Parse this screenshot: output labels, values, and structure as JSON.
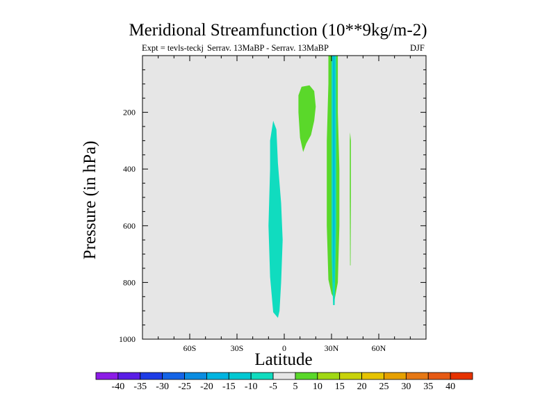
{
  "chart_data": {
    "type": "contour",
    "title": "Meridional Streamfunction (10**9kg/m-2)",
    "subtitle_left": "Expt = tevls-teckj",
    "subtitle_center": "Serrav.   13MaBP - Serrav.   13MaBP",
    "subtitle_right": "DJF",
    "xlabel": "Latitude",
    "ylabel": "Pressure (in hPa)",
    "xlim": [
      -90,
      90
    ],
    "ylim": [
      1000,
      0
    ],
    "x_ticks": [
      {
        "value": -60,
        "label": "60S"
      },
      {
        "value": -30,
        "label": "30S"
      },
      {
        "value": 0,
        "label": "0"
      },
      {
        "value": 30,
        "label": "30N"
      },
      {
        "value": 60,
        "label": "60N"
      }
    ],
    "y_ticks": [
      {
        "value": 200,
        "label": "200"
      },
      {
        "value": 400,
        "label": "400"
      },
      {
        "value": 600,
        "label": "600"
      },
      {
        "value": 800,
        "label": "800"
      },
      {
        "value": 1000,
        "label": "1000"
      }
    ],
    "background_color": "#e6e6e6",
    "regions": [
      {
        "name": "neg-5-cell-near-eq",
        "level": -5,
        "color": "#10dcbf",
        "points": [
          [
            -7,
            230
          ],
          [
            -5,
            260
          ],
          [
            -4,
            380
          ],
          [
            -2,
            520
          ],
          [
            -1,
            650
          ],
          [
            -2,
            800
          ],
          [
            -3,
            900
          ],
          [
            -4,
            925
          ],
          [
            -7,
            905
          ],
          [
            -9,
            780
          ],
          [
            -10,
            600
          ],
          [
            -9,
            400
          ],
          [
            -9,
            300
          ]
        ]
      },
      {
        "name": "pos-5-cell-upper",
        "level": 5,
        "color": "#5ad82a",
        "points": [
          [
            11,
            110
          ],
          [
            16,
            105
          ],
          [
            19,
            125
          ],
          [
            20,
            180
          ],
          [
            19,
            230
          ],
          [
            17,
            280
          ],
          [
            14,
            310
          ],
          [
            12,
            340
          ],
          [
            10,
            290
          ],
          [
            9,
            200
          ],
          [
            9,
            140
          ]
        ]
      },
      {
        "name": "pos-5-band-30n",
        "level": 5,
        "color": "#5ad82a",
        "points": [
          [
            28,
            0
          ],
          [
            34,
            0
          ],
          [
            34,
            200
          ],
          [
            35,
            400
          ],
          [
            35,
            600
          ],
          [
            34,
            800
          ],
          [
            32,
            860
          ],
          [
            30,
            840
          ],
          [
            28,
            790
          ],
          [
            27,
            600
          ],
          [
            27,
            300
          ],
          [
            28,
            100
          ]
        ]
      },
      {
        "name": "neg-5-band-31n",
        "level": -5,
        "color": "#10dcbf",
        "points": [
          [
            30,
            0
          ],
          [
            33,
            0
          ],
          [
            33,
            300
          ],
          [
            33,
            600
          ],
          [
            32,
            880
          ],
          [
            31,
            880
          ],
          [
            30,
            700
          ],
          [
            30,
            300
          ]
        ]
      },
      {
        "name": "neg-15-band-31n",
        "level": -15,
        "color": "#00b4e0",
        "points": [
          [
            31,
            0
          ],
          [
            32,
            0
          ],
          [
            32,
            300
          ],
          [
            32,
            600
          ],
          [
            31.6,
            800
          ],
          [
            31.3,
            800
          ],
          [
            31,
            600
          ],
          [
            31,
            300
          ]
        ]
      },
      {
        "name": "pos-5-band-42n",
        "level": 5,
        "color": "#5ad82a",
        "points": [
          [
            41.8,
            270
          ],
          [
            42.3,
            300
          ],
          [
            42.3,
            500
          ],
          [
            42.1,
            740
          ],
          [
            41.8,
            740
          ],
          [
            41.6,
            500
          ],
          [
            41.6,
            300
          ]
        ]
      }
    ],
    "colorbar": {
      "labels": [
        "-40",
        "-35",
        "-30",
        "-25",
        "-20",
        "-15",
        "-10",
        "-5",
        "5",
        "10",
        "15",
        "20",
        "25",
        "30",
        "35",
        "40"
      ],
      "colors": [
        "#8c1ce6",
        "#5a1ee6",
        "#1e3ce6",
        "#1464e6",
        "#0a8ce0",
        "#00b4e0",
        "#00c8d2",
        "#10dcbf",
        "#e6e6e6",
        "#5ad82a",
        "#a0d814",
        "#c8d20a",
        "#e6c300",
        "#e6a000",
        "#e67814",
        "#e65a14",
        "#e63200"
      ]
    }
  }
}
